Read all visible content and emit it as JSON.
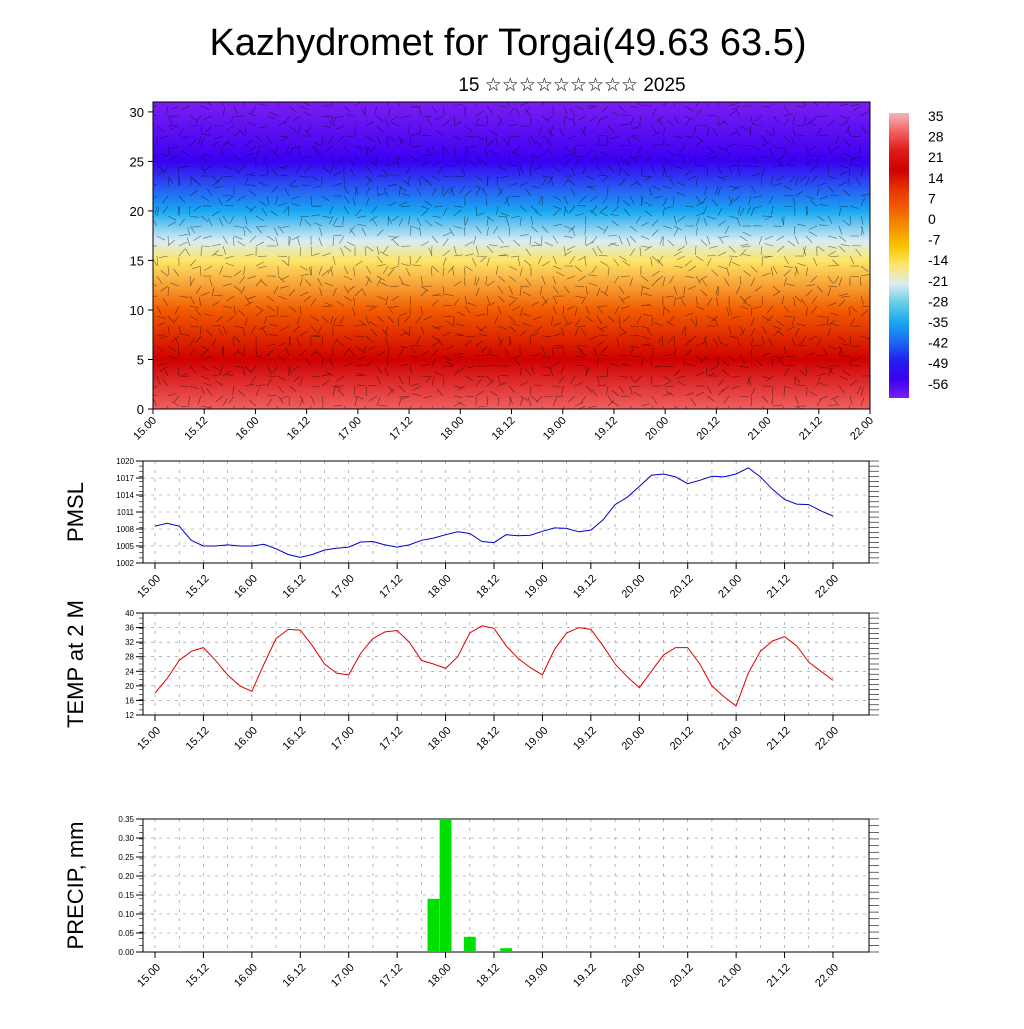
{
  "page": {
    "title": "Kazhydromet for Torgai(49.63 63.5)",
    "subtitle": "15 ☆☆☆☆☆☆☆☆☆ 2025"
  },
  "time_ticks": [
    "15.00",
    "15.12",
    "16.00",
    "16.12",
    "17.00",
    "17.12",
    "18.00",
    "18.12",
    "19.00",
    "19.12",
    "20.00",
    "20.12",
    "21.00",
    "21.12",
    "22.00"
  ],
  "chart_data": [
    {
      "type": "heatmap",
      "title": "Kazhydromet for Torgai(49.63 63.5)",
      "subtitle": "15 ☆☆☆☆☆☆☆☆☆ 2025",
      "xlabel": "",
      "ylabel": "",
      "ylim": [
        0,
        31
      ],
      "yticks": [
        0,
        5,
        10,
        15,
        20,
        25,
        30
      ],
      "colorbar": {
        "labels": [
          "35",
          "28",
          "21",
          "14",
          "7",
          "0",
          "-7",
          "-14",
          "-21",
          "-28",
          "-35",
          "-42",
          "-49",
          "-56"
        ],
        "range": [
          -60,
          38
        ],
        "colors": [
          "#f2b8b8",
          "#f06060",
          "#e21818",
          "#cf0000",
          "#e83300",
          "#f25c00",
          "#f69000",
          "#f8c400",
          "#fde66a",
          "#d9ecf2",
          "#67cde6",
          "#17a9f2",
          "#1c6cf2",
          "#2020f0",
          "#3a00f2",
          "#7a1ef2"
        ]
      },
      "temperature_profile": {
        "heights": [
          0,
          5,
          10,
          15,
          17,
          20,
          25,
          31
        ],
        "values": [
          30,
          18,
          4,
          -13,
          -20,
          -35,
          -55,
          -60
        ]
      },
      "surface_warm_peaks_time": [
        "16.12",
        "17.12",
        "18.12",
        "19.12"
      ],
      "overlay": "wind barbs"
    },
    {
      "type": "line",
      "ylabel": "PMSL",
      "ylim": [
        1002,
        1020
      ],
      "yticks": [
        1002,
        1005,
        1008,
        1011,
        1014,
        1017,
        1020
      ],
      "series": [
        {
          "color": "#0000cc",
          "x": [
            0,
            3,
            6,
            9,
            12,
            15,
            18,
            21,
            24,
            27,
            30,
            33,
            36,
            39,
            42,
            45,
            48,
            51,
            54,
            57,
            60,
            63,
            66,
            69,
            72,
            75,
            78,
            81,
            84,
            87,
            90,
            93,
            96,
            99,
            102,
            105,
            108,
            111,
            114,
            117,
            120,
            123,
            126,
            129,
            132,
            135,
            138,
            141,
            144,
            147,
            150,
            153,
            156,
            159,
            162,
            165,
            168
          ],
          "values": [
            1008.5,
            1009,
            1008.5,
            1006,
            1005,
            1005,
            1005.2,
            1005,
            1005,
            1005.3,
            1004.5,
            1003.5,
            1003,
            1003.5,
            1004.3,
            1004.6,
            1004.8,
            1005.7,
            1005.8,
            1005.2,
            1004.8,
            1005.2,
            1006,
            1006.4,
            1007,
            1007.5,
            1007.2,
            1005.8,
            1005.6,
            1007,
            1006.8,
            1006.9,
            1007.6,
            1008.2,
            1008.1,
            1007.5,
            1007.8,
            1009.6,
            1012.3,
            1013.6,
            1015.5,
            1017.5,
            1017.7,
            1017.2,
            1016,
            1016.6,
            1017.3,
            1017.2,
            1017.7,
            1018.8,
            1017.2,
            1015,
            1013.2,
            1012.4,
            1012.3,
            1011.2,
            1010.3
          ]
        }
      ]
    },
    {
      "type": "line",
      "ylabel": "TEMP at 2 M",
      "ylim": [
        12,
        40
      ],
      "yticks": [
        12,
        16,
        20,
        24,
        28,
        32,
        36,
        40
      ],
      "series": [
        {
          "color": "#e00000",
          "x": [
            0,
            3,
            6,
            9,
            12,
            15,
            18,
            21,
            24,
            27,
            30,
            33,
            36,
            39,
            42,
            45,
            48,
            51,
            54,
            57,
            60,
            63,
            66,
            69,
            72,
            75,
            78,
            81,
            84,
            87,
            90,
            93,
            96,
            99,
            102,
            105,
            108,
            111,
            114,
            117,
            120,
            123,
            126,
            129,
            132,
            135,
            138,
            141,
            144,
            147,
            150,
            153,
            156,
            159,
            162,
            165,
            168
          ],
          "values": [
            18,
            22,
            27,
            29.5,
            30.5,
            27,
            23,
            20,
            18.5,
            26,
            33,
            35.5,
            35.3,
            31,
            26,
            23.5,
            23,
            29,
            33,
            34.8,
            35.2,
            32,
            27,
            26,
            24.8,
            28,
            34.5,
            36.5,
            35.8,
            31,
            27.5,
            25,
            23,
            30,
            34.5,
            36,
            35.5,
            31,
            26,
            22.5,
            19.5,
            24,
            28.5,
            30.5,
            30.5,
            26,
            20,
            17,
            14.5,
            23.5,
            29.5,
            32.3,
            33.5,
            31,
            26.5,
            24,
            21.5
          ]
        }
      ]
    },
    {
      "type": "bar",
      "ylabel": "PRECIP, mm",
      "ylim": [
        0,
        0.35
      ],
      "yticks": [
        "0.00",
        "0.05",
        "0.10",
        "0.15",
        "0.20",
        "0.25",
        "0.30",
        "0.35"
      ],
      "color": "#00e000",
      "x": [
        69,
        72,
        78,
        87
      ],
      "values": [
        0.14,
        0.35,
        0.04,
        0.01
      ]
    }
  ]
}
